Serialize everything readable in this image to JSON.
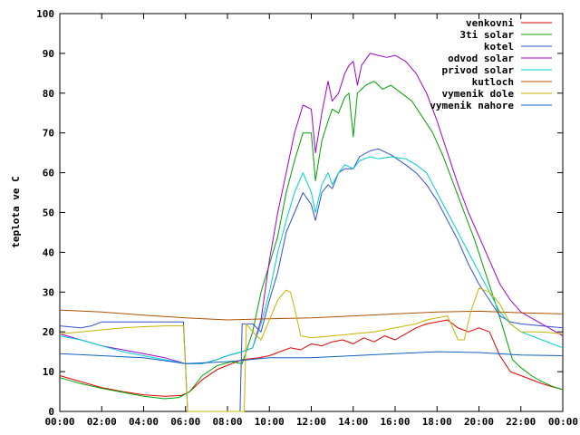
{
  "chart_data": {
    "type": "line",
    "title": "",
    "xlabel": "",
    "ylabel": "teplota ve C",
    "xlim": [
      "00:00",
      "24:00"
    ],
    "ylim": [
      0,
      100
    ],
    "x_ticks": [
      "00:00",
      "02:00",
      "04:00",
      "06:00",
      "08:00",
      "10:00",
      "12:00",
      "14:00",
      "16:00",
      "18:00",
      "20:00",
      "22:00",
      "00:00"
    ],
    "y_ticks": [
      0,
      10,
      20,
      30,
      40,
      50,
      60,
      70,
      80,
      90,
      100
    ],
    "grid": false,
    "legend_position": "top-right",
    "series": [
      {
        "name": "venkovni",
        "color": "#e00000",
        "points": [
          [
            0,
            9
          ],
          [
            1,
            7.5
          ],
          [
            2,
            6
          ],
          [
            3,
            5
          ],
          [
            4,
            4.2
          ],
          [
            5,
            3.8
          ],
          [
            5.8,
            4
          ],
          [
            6.2,
            5
          ],
          [
            6.8,
            8
          ],
          [
            7.5,
            10.5
          ],
          [
            8.2,
            12
          ],
          [
            8.7,
            13
          ],
          [
            9.5,
            13.5
          ],
          [
            10,
            14
          ],
          [
            10.5,
            15
          ],
          [
            11,
            16
          ],
          [
            11.5,
            15.5
          ],
          [
            12,
            17
          ],
          [
            12.5,
            16.5
          ],
          [
            13,
            17.5
          ],
          [
            13.5,
            18
          ],
          [
            14,
            17
          ],
          [
            14.5,
            18.5
          ],
          [
            15,
            17.5
          ],
          [
            15.5,
            19
          ],
          [
            16,
            18
          ],
          [
            16.5,
            19.5
          ],
          [
            17,
            21
          ],
          [
            17.5,
            22
          ],
          [
            18,
            22.5
          ],
          [
            18.5,
            23
          ],
          [
            19,
            21
          ],
          [
            19.5,
            20
          ],
          [
            20,
            21
          ],
          [
            20.5,
            20
          ],
          [
            21,
            14
          ],
          [
            21.5,
            10
          ],
          [
            22,
            9
          ],
          [
            22.5,
            8
          ],
          [
            23,
            7
          ],
          [
            23.5,
            6.2
          ],
          [
            24,
            5.5
          ]
        ]
      },
      {
        "name": "3ti solar",
        "color": "#00a000",
        "points": [
          [
            0,
            8.5
          ],
          [
            1,
            7
          ],
          [
            2,
            5.8
          ],
          [
            3,
            4.8
          ],
          [
            4,
            3.8
          ],
          [
            5,
            3.2
          ],
          [
            5.7,
            3.5
          ],
          [
            6.2,
            5
          ],
          [
            6.8,
            9
          ],
          [
            7.5,
            11.5
          ],
          [
            8.2,
            12.5
          ],
          [
            8.7,
            12
          ],
          [
            9.2,
            20
          ],
          [
            9.6,
            30
          ],
          [
            10,
            37
          ],
          [
            10.4,
            44
          ],
          [
            10.8,
            55
          ],
          [
            11.2,
            63
          ],
          [
            11.6,
            70
          ],
          [
            12,
            70
          ],
          [
            12.2,
            58
          ],
          [
            12.5,
            68
          ],
          [
            12.8,
            73
          ],
          [
            13,
            76
          ],
          [
            13.3,
            75
          ],
          [
            13.6,
            79
          ],
          [
            13.8,
            80
          ],
          [
            14,
            69
          ],
          [
            14.2,
            80
          ],
          [
            14.6,
            82
          ],
          [
            15,
            83
          ],
          [
            15.4,
            81
          ],
          [
            15.8,
            82
          ],
          [
            16.3,
            80
          ],
          [
            16.8,
            78
          ],
          [
            17.3,
            74
          ],
          [
            17.8,
            70
          ],
          [
            18.3,
            64
          ],
          [
            18.8,
            57
          ],
          [
            19.3,
            50
          ],
          [
            19.8,
            43
          ],
          [
            20.3,
            35
          ],
          [
            20.8,
            27
          ],
          [
            21.2,
            20
          ],
          [
            21.6,
            13
          ],
          [
            22,
            11
          ],
          [
            22.5,
            9
          ],
          [
            23,
            7.5
          ],
          [
            23.5,
            6.3
          ],
          [
            24,
            5.5
          ]
        ]
      },
      {
        "name": "kotel",
        "color": "#3050d0",
        "points": [
          [
            0,
            21.5
          ],
          [
            1,
            21
          ],
          [
            1.5,
            21.5
          ],
          [
            2,
            22.5
          ],
          [
            3,
            22.5
          ],
          [
            4,
            22.5
          ],
          [
            5,
            22.5
          ],
          [
            5.9,
            22.5
          ],
          [
            6.1,
            0
          ],
          [
            8.6,
            0
          ],
          [
            8.7,
            22
          ],
          [
            9.2,
            22
          ],
          [
            9.6,
            20
          ],
          [
            10,
            28
          ],
          [
            10.4,
            35
          ],
          [
            10.8,
            45
          ],
          [
            11.2,
            50
          ],
          [
            11.6,
            55
          ],
          [
            12,
            52
          ],
          [
            12.2,
            48
          ],
          [
            12.5,
            55
          ],
          [
            12.8,
            57
          ],
          [
            13,
            56
          ],
          [
            13.3,
            60
          ],
          [
            13.6,
            61
          ],
          [
            14,
            61
          ],
          [
            14.3,
            64
          ],
          [
            14.8,
            65.5
          ],
          [
            15.2,
            66
          ],
          [
            15.8,
            64.5
          ],
          [
            16.5,
            62
          ],
          [
            17,
            60
          ],
          [
            17.5,
            57
          ],
          [
            18,
            53
          ],
          [
            18.5,
            48
          ],
          [
            19,
            43
          ],
          [
            19.5,
            37
          ],
          [
            20,
            32
          ],
          [
            20.5,
            28
          ],
          [
            21,
            24
          ],
          [
            21.5,
            22.5
          ],
          [
            22,
            22
          ],
          [
            23,
            21.5
          ],
          [
            24,
            21
          ]
        ]
      },
      {
        "name": "odvod solar",
        "color": "#a000d0",
        "points": [
          [
            0,
            19.5
          ],
          [
            1,
            18
          ],
          [
            2,
            16.5
          ],
          [
            3,
            15.5
          ],
          [
            4,
            14.5
          ],
          [
            5,
            13.5
          ],
          [
            6,
            12
          ],
          [
            6.8,
            12
          ],
          [
            7.5,
            13
          ],
          [
            8,
            14
          ],
          [
            8.7,
            15
          ],
          [
            9.2,
            16
          ],
          [
            9.6,
            23
          ],
          [
            10,
            38
          ],
          [
            10.4,
            50
          ],
          [
            10.8,
            60
          ],
          [
            11.2,
            70
          ],
          [
            11.6,
            77
          ],
          [
            12,
            76
          ],
          [
            12.2,
            65
          ],
          [
            12.5,
            75
          ],
          [
            12.8,
            83
          ],
          [
            13,
            78
          ],
          [
            13.3,
            80
          ],
          [
            13.6,
            85
          ],
          [
            13.8,
            87
          ],
          [
            14,
            88
          ],
          [
            14.2,
            82
          ],
          [
            14.4,
            87
          ],
          [
            14.8,
            90
          ],
          [
            15.2,
            89.5
          ],
          [
            15.6,
            89
          ],
          [
            16,
            89.5
          ],
          [
            16.5,
            88
          ],
          [
            17,
            85
          ],
          [
            17.5,
            80
          ],
          [
            18,
            73
          ],
          [
            18.5,
            65
          ],
          [
            19,
            57
          ],
          [
            19.5,
            50
          ],
          [
            20,
            44
          ],
          [
            20.5,
            38
          ],
          [
            21,
            32
          ],
          [
            21.5,
            28
          ],
          [
            22,
            25
          ],
          [
            23,
            22
          ],
          [
            24,
            19
          ]
        ]
      },
      {
        "name": "privod solar",
        "color": "#00d0d0",
        "points": [
          [
            0,
            19
          ],
          [
            1,
            18
          ],
          [
            2,
            16.5
          ],
          [
            3,
            15
          ],
          [
            4,
            14
          ],
          [
            5,
            13
          ],
          [
            6,
            12
          ],
          [
            6.8,
            12
          ],
          [
            7.5,
            13
          ],
          [
            8,
            14
          ],
          [
            8.7,
            15
          ],
          [
            9.2,
            16
          ],
          [
            9.6,
            22
          ],
          [
            10,
            30
          ],
          [
            10.4,
            40
          ],
          [
            10.8,
            48
          ],
          [
            11.2,
            55
          ],
          [
            11.6,
            60
          ],
          [
            12,
            55
          ],
          [
            12.2,
            50
          ],
          [
            12.5,
            57
          ],
          [
            12.8,
            60
          ],
          [
            13,
            57
          ],
          [
            13.3,
            60
          ],
          [
            13.6,
            62
          ],
          [
            14,
            61
          ],
          [
            14.3,
            63
          ],
          [
            14.8,
            64
          ],
          [
            15.2,
            63.5
          ],
          [
            15.8,
            64
          ],
          [
            16.5,
            63.5
          ],
          [
            17,
            62
          ],
          [
            17.5,
            60
          ],
          [
            18,
            55
          ],
          [
            18.5,
            50
          ],
          [
            19,
            45
          ],
          [
            19.5,
            40
          ],
          [
            20,
            35
          ],
          [
            20.5,
            30
          ],
          [
            21,
            25
          ],
          [
            21.5,
            22
          ],
          [
            22,
            20
          ],
          [
            23,
            18
          ],
          [
            24,
            16
          ]
        ]
      },
      {
        "name": "kutloch",
        "color": "#b05000",
        "points": [
          [
            0,
            25.5
          ],
          [
            2,
            25
          ],
          [
            4,
            24.2
          ],
          [
            6,
            23.5
          ],
          [
            8,
            23
          ],
          [
            10,
            23.3
          ],
          [
            12,
            23.5
          ],
          [
            14,
            24
          ],
          [
            16,
            24.5
          ],
          [
            18,
            25
          ],
          [
            20,
            25.2
          ],
          [
            22,
            24.8
          ],
          [
            24,
            24.5
          ]
        ]
      },
      {
        "name": "vymenik dole",
        "color": "#c8b400",
        "points": [
          [
            0,
            19.5
          ],
          [
            1,
            20
          ],
          [
            2,
            20.5
          ],
          [
            3,
            21
          ],
          [
            4,
            21.3
          ],
          [
            5,
            21.5
          ],
          [
            5.9,
            21.5
          ],
          [
            6.1,
            0
          ],
          [
            8.8,
            0
          ],
          [
            8.9,
            22
          ],
          [
            9.2,
            20
          ],
          [
            9.6,
            18
          ],
          [
            10,
            23
          ],
          [
            10.4,
            28
          ],
          [
            10.8,
            30.5
          ],
          [
            11,
            30
          ],
          [
            11.2,
            26
          ],
          [
            11.5,
            19
          ],
          [
            12,
            18.5
          ],
          [
            13,
            19
          ],
          [
            14,
            19.5
          ],
          [
            15,
            20
          ],
          [
            16,
            21
          ],
          [
            17,
            22
          ],
          [
            17.5,
            23
          ],
          [
            18,
            23.5
          ],
          [
            18.5,
            24
          ],
          [
            19,
            18
          ],
          [
            19.3,
            18
          ],
          [
            19.6,
            25
          ],
          [
            20,
            31
          ],
          [
            20.5,
            30
          ],
          [
            21,
            27
          ],
          [
            21.5,
            22
          ],
          [
            22,
            20
          ],
          [
            23,
            20
          ],
          [
            24,
            19.5
          ]
        ]
      },
      {
        "name": "vymenik nahore",
        "color": "#1060c0",
        "points": [
          [
            0,
            14.5
          ],
          [
            2,
            14
          ],
          [
            4,
            13.5
          ],
          [
            6,
            12
          ],
          [
            8,
            12.5
          ],
          [
            10,
            13.5
          ],
          [
            12,
            13.5
          ],
          [
            14,
            14
          ],
          [
            16,
            14.5
          ],
          [
            18,
            15
          ],
          [
            20,
            14.8
          ],
          [
            22,
            14.2
          ],
          [
            24,
            14
          ]
        ]
      }
    ]
  }
}
